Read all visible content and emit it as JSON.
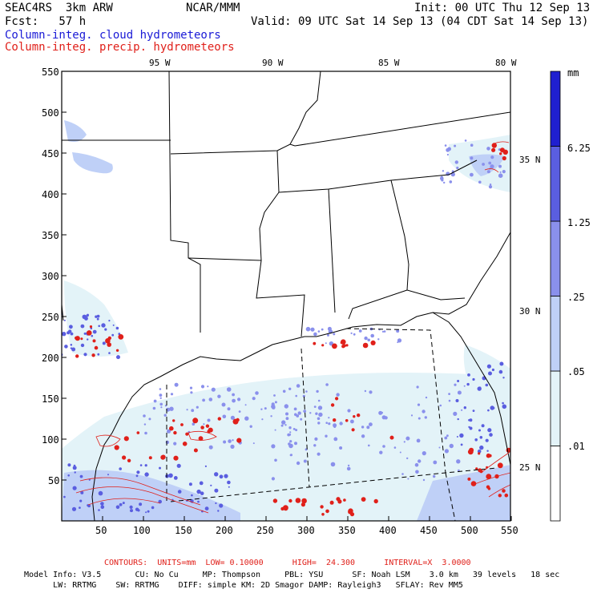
{
  "header": {
    "model": "SEAC4RS  3km ARW",
    "org": "NCAR/MMM",
    "init": "Init: 00 UTC Thu 12 Sep 13",
    "fcst": "Fcst:   57 h",
    "valid": "Valid: 09 UTC Sat 14 Sep 13 (04 CDT Sat 14 Sep 13)",
    "field1": "Column-integ. cloud hydrometeors",
    "field2": "Column-integ. precip. hydrometeors",
    "field1_color": "#1a1ad6",
    "field2_color": "#e0201a"
  },
  "map": {
    "lon_labels": [
      "95 W",
      "90 W",
      "85 W",
      "80 W"
    ],
    "lat_labels": [
      "35 N",
      "30 N",
      "25 N"
    ],
    "x_ticks": [
      "50",
      "100",
      "150",
      "200",
      "250",
      "300",
      "350",
      "400",
      "450",
      "500",
      "550"
    ],
    "y_ticks": [
      "550",
      "500",
      "450",
      "400",
      "350",
      "300",
      "250",
      "200",
      "150",
      "100",
      "50"
    ]
  },
  "colorbar": {
    "unit": "mm",
    "levels": [
      {
        "label": ".01",
        "color": "#ffffff"
      },
      {
        "label": ".05",
        "color": "#e3f3f8"
      },
      {
        "label": ".25",
        "color": "#bfd0f7"
      },
      {
        "label": "1.25",
        "color": "#8a90ec"
      },
      {
        "label": "6.25",
        "color": "#5a5ee0"
      },
      {
        "label": "",
        "color": "#1f1fd0"
      }
    ]
  },
  "footer": {
    "contours": "CONTOURS:  UNITS=mm  LOW= 0.10000      HIGH=  24.300      INTERVAL=X  3.0000",
    "line1": "Model Info: V3.5       CU: No Cu     MP: Thompson     PBL: YSU      SF: Noah LSM    3.0 km   39 levels   18 sec",
    "line2": "      LW: RRTMG    SW: RRTMG    DIFF: simple KM: 2D Smagor DAMP: Rayleigh3   SFLAY: Rev MM5"
  }
}
